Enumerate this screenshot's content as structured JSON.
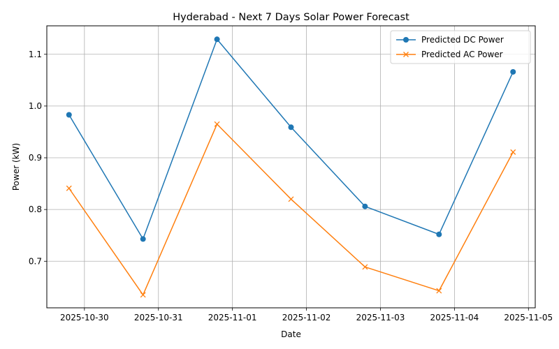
{
  "chart_data": {
    "type": "line",
    "title": "Hyderabad - Next 7 Days Solar Power Forecast",
    "xlabel": "Date",
    "ylabel": "Power (kW)",
    "x": [
      "2025-10-29 19:00",
      "2025-10-30 19:00",
      "2025-10-31 19:00",
      "2025-11-01 19:00",
      "2025-11-02 19:00",
      "2025-11-03 19:00",
      "2025-11-04 19:00"
    ],
    "x_tick_labels": [
      "2025-10-30",
      "2025-10-31",
      "2025-11-01",
      "2025-11-02",
      "2025-11-03",
      "2025-11-04",
      "2025-11-05"
    ],
    "y_ticks": [
      0.7,
      0.8,
      0.9,
      1.0,
      1.1
    ],
    "y_tick_labels": [
      "0.7",
      "0.8",
      "0.9",
      "1.0",
      "1.1"
    ],
    "ylim": [
      0.61,
      1.155
    ],
    "grid": true,
    "legend_position": "top-right",
    "series": [
      {
        "name": "Predicted DC Power",
        "values": [
          0.983,
          0.743,
          1.129,
          0.959,
          0.806,
          0.752,
          1.066
        ],
        "color": "#1f77b4",
        "marker": "circle"
      },
      {
        "name": "Predicted AC Power",
        "values": [
          0.841,
          0.635,
          0.965,
          0.82,
          0.689,
          0.643,
          0.911
        ],
        "color": "#ff7f0e",
        "marker": "x"
      }
    ]
  }
}
